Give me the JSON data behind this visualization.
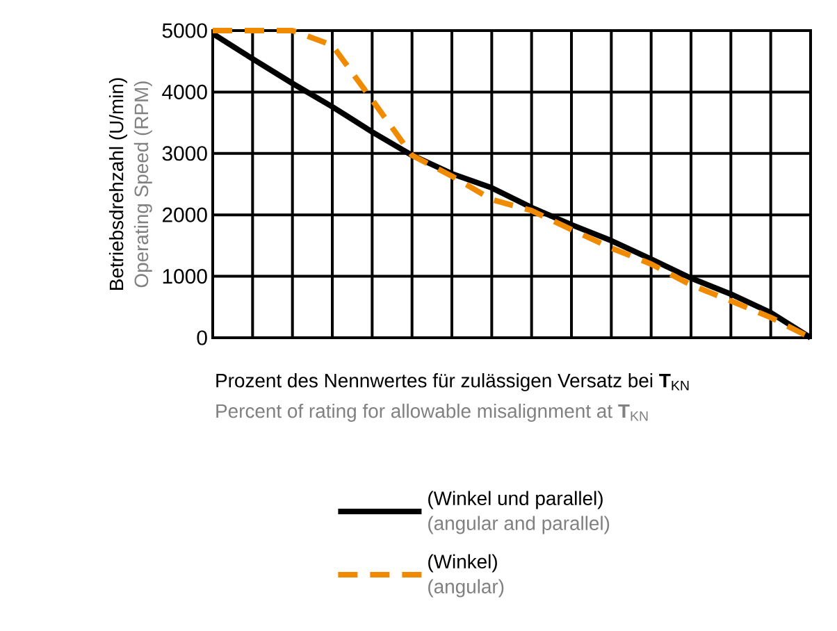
{
  "chart_data": {
    "type": "line",
    "xlabel": "Prozent des Nennwertes für zulässigen Versatz bei **T**$_{KN}$",
    "ylabel": "Betriebsdrehzahl (U/min)",
    "annotations": [
      "Operating Speed (RPM)",
      "Percent of rating for allowable misalignment at **T**$_{KN}$",
      "(angular and parallel)",
      "(angular)"
    ],
    "categories": [
      null,
      null,
      null,
      null,
      null,
      null,
      null,
      null,
      null,
      null,
      null,
      null,
      null,
      null,
      null,
      null
    ],
    "series": [
      {
        "name": "(Winkel und parallel)",
        "color": "#000000",
        "line_style": "solid",
        "values": [
          4950,
          4540,
          4140,
          3760,
          3350,
          2970,
          2670,
          2440,
          2120,
          1840,
          1580,
          1280,
          970,
          710,
          410,
          0
        ]
      },
      {
        "name": "(Winkel)",
        "color": "#f08a00",
        "line_style": "dashed",
        "values": [
          5000,
          5000,
          5000,
          4760,
          3870,
          2970,
          2630,
          2250,
          2070,
          1760,
          1460,
          1200,
          860,
          600,
          330,
          0
        ]
      }
    ],
    "ylim": [
      0,
      5000
    ],
    "yticks": [
      0,
      1000,
      2000,
      3000,
      4000,
      5000
    ],
    "grid": true,
    "legend": "bottom",
    "tick_labels": "y",
    "marker": "none"
  }
}
